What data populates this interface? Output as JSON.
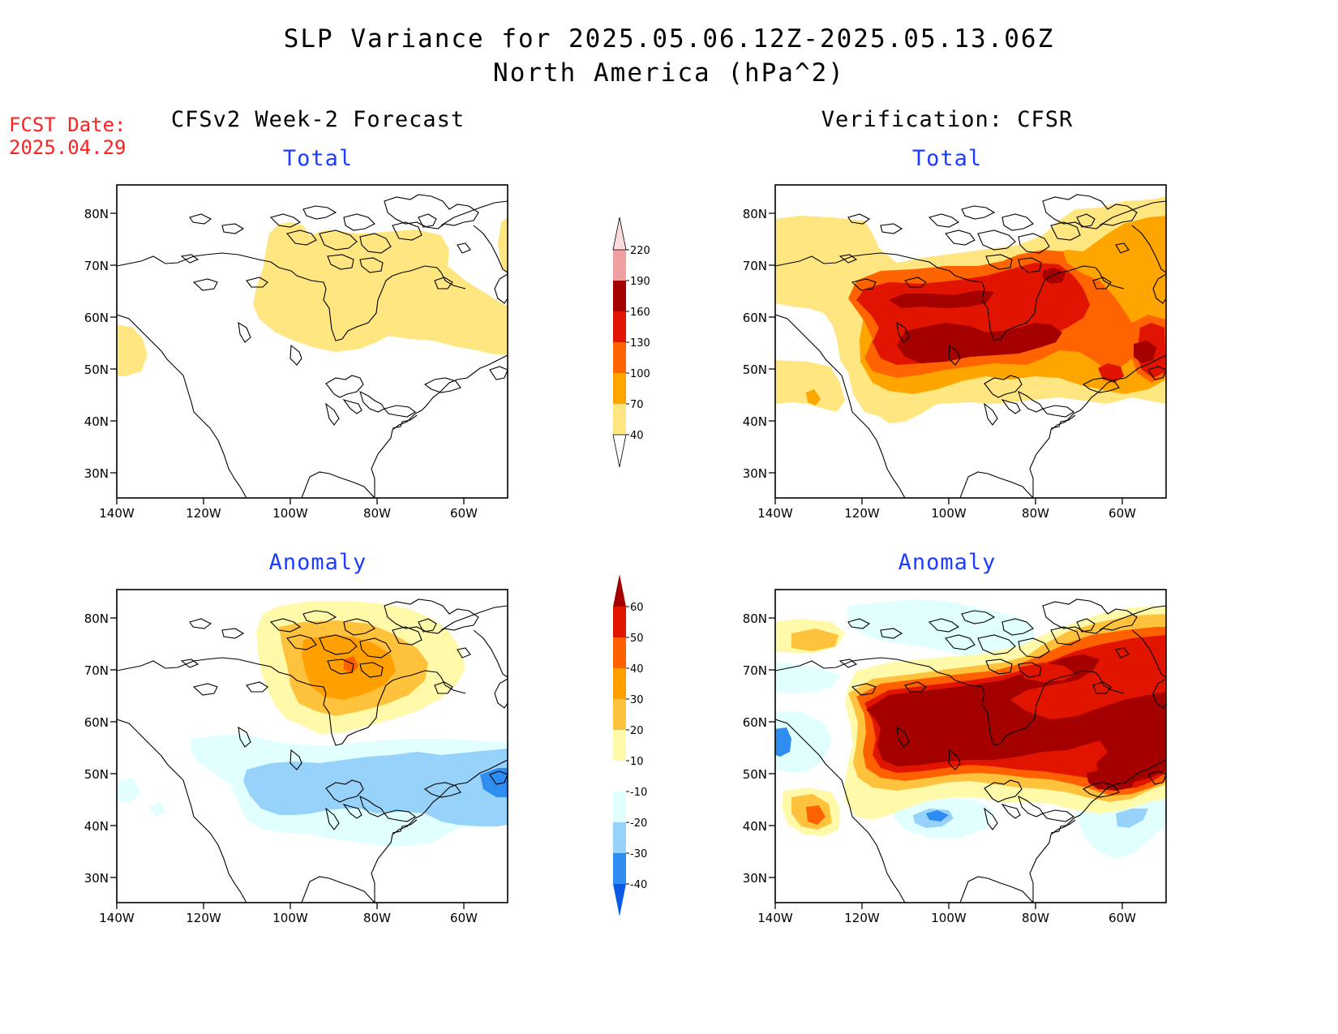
{
  "title_line1": "SLP Variance for 2025.05.06.12Z-2025.05.13.06Z",
  "title_line2": "North America (hPa^2)",
  "fcst_label": "FCST Date:",
  "fcst_date": "2025.04.29",
  "columns": {
    "left": "CFSv2 Week-2 Forecast",
    "right": "Verification: CFSR"
  },
  "panel_titles": {
    "fcst_total": "Total",
    "fcst_anomaly": "Anomaly",
    "verif_total": "Total",
    "verif_anomaly": "Anomaly"
  },
  "axes": {
    "lon_labels": [
      "140W",
      "120W",
      "100W",
      "80W",
      "60W"
    ],
    "lat_labels": [
      "80N",
      "70N",
      "60N",
      "50N",
      "40N",
      "30N"
    ]
  },
  "colorbar_total": {
    "levels": [
      "40",
      "70",
      "100",
      "130",
      "160",
      "190",
      "220"
    ],
    "colors": [
      "#ffe680",
      "#ffa500",
      "#ff6400",
      "#e01400",
      "#a50000",
      "#f0a0a0",
      "#ffdcdc"
    ]
  },
  "colorbar_anomaly": {
    "levels": [
      "-40",
      "-30",
      "-20",
      "-10",
      "10",
      "20",
      "30",
      "40",
      "50",
      "60"
    ],
    "colors": [
      "#0a5ae6",
      "#2f8cf0",
      "#96d2fa",
      "#e1ffff",
      "#ffffff",
      "#fffaaa",
      "#ffc23c",
      "#ffa000",
      "#ff6000",
      "#e11400",
      "#a50000"
    ]
  }
}
